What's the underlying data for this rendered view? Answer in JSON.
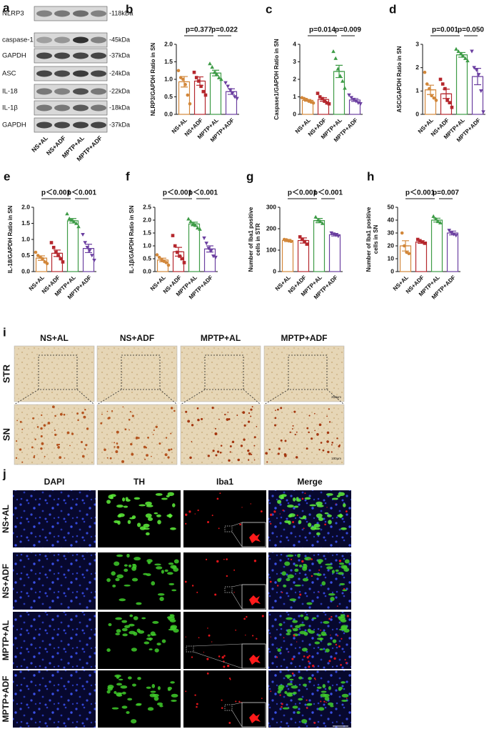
{
  "blot": {
    "label": "a",
    "rows": [
      {
        "name": "NLRP3",
        "size": "-118kDa"
      },
      {
        "name": "caspase-1",
        "size": "-45kDa"
      },
      {
        "name": "GAPDH",
        "size": "-37kDa"
      },
      {
        "name": "ASC",
        "size": "-24kDa"
      },
      {
        "name": "IL-18",
        "size": "-22kDa"
      },
      {
        "name": "IL-1β",
        "size": "-18kDa"
      },
      {
        "name": "GAPDH",
        "size": "-37kDa"
      }
    ],
    "lanes": [
      "NS+AL",
      "NS+ADF",
      "MPTP+AL",
      "MPTP+ADF"
    ]
  },
  "chart_data": [
    {
      "type": "bar",
      "label": "b",
      "ylabel": "NLRP3/GAPDH Ratio in SN",
      "categories": [
        "NS+AL",
        "NS+ADF",
        "MPTP+AL",
        "MPTP+ADF"
      ],
      "values": [
        0.93,
        0.95,
        1.18,
        0.65
      ],
      "errors": [
        0.15,
        0.12,
        0.08,
        0.08
      ],
      "points": [
        [
          1.25,
          1.05,
          1.0,
          0.85,
          0.55,
          0.3
        ],
        [
          1.2,
          1.05,
          0.95,
          0.8,
          0.65,
          0.55
        ],
        [
          1.45,
          1.35,
          1.2,
          1.15,
          1.05,
          1.0
        ],
        [
          0.9,
          0.8,
          0.7,
          0.6,
          0.5,
          0.45
        ]
      ],
      "colors": [
        "#d2873a",
        "#b5272d",
        "#3d9b46",
        "#6b3fa0"
      ],
      "ylim": [
        0,
        2
      ],
      "yticks": [
        {
          "value": 0,
          "label": "0.0"
        },
        0.5,
        {
          "value": 1,
          "label": "1.0"
        },
        1.5,
        {
          "value": 2,
          "label": "2.0"
        }
      ],
      "annotations": [
        "p=0.377",
        "p=0.022"
      ]
    },
    {
      "type": "bar",
      "label": "c",
      "ylabel": "Caspase1/GAPDH Ratio in SN",
      "categories": [
        "NS+AL",
        "NS+ADF",
        "MPTP+AL",
        "MPTP+ADF"
      ],
      "values": [
        0.8,
        0.85,
        2.45,
        0.82
      ],
      "errors": [
        0.05,
        0.1,
        0.35,
        0.08
      ],
      "points": [
        [
          0.95,
          0.9,
          0.85,
          0.75,
          0.7,
          0.65
        ],
        [
          1.2,
          1.0,
          0.9,
          0.75,
          0.65,
          0.6
        ],
        [
          3.6,
          3.2,
          2.6,
          2.2,
          1.9,
          1.5
        ],
        [
          1.1,
          0.95,
          0.85,
          0.75,
          0.65,
          0.6
        ]
      ],
      "colors": [
        "#d2873a",
        "#b5272d",
        "#3d9b46",
        "#6b3fa0"
      ],
      "ylim": [
        0,
        4
      ],
      "yticks": [
        0,
        1,
        2,
        3,
        4
      ],
      "annotations": [
        "p=0.014",
        "p=0.009"
      ]
    },
    {
      "type": "bar",
      "label": "d",
      "ylabel": "ASC/GAPDH Ratio in SN",
      "categories": [
        "NS+AL",
        "NS+ADF",
        "MPTP+AL",
        "MPTP+ADF"
      ],
      "values": [
        1.05,
        0.88,
        2.55,
        1.62
      ],
      "errors": [
        0.2,
        0.2,
        0.1,
        0.35
      ],
      "points": [
        [
          1.8,
          1.3,
          1.1,
          0.8,
          0.7,
          0.6
        ],
        [
          1.5,
          1.3,
          1.1,
          0.6,
          0.5,
          0.3
        ],
        [
          2.8,
          2.7,
          2.6,
          2.5,
          2.4,
          2.3
        ],
        [
          2.7,
          2.0,
          1.9,
          1.7,
          1.0,
          0.1
        ]
      ],
      "colors": [
        "#d2873a",
        "#b5272d",
        "#3d9b46",
        "#6b3fa0"
      ],
      "ylim": [
        0,
        3
      ],
      "yticks": [
        0,
        1,
        2,
        3
      ],
      "annotations": [
        "p=0.001",
        "p=0.050"
      ]
    },
    {
      "type": "bar",
      "label": "e",
      "ylabel": "IL-18/GAPDH Ratio in SN",
      "categories": [
        "NS+AL",
        "NS+ADF",
        "MPTP+AL",
        "MPTP+ADF"
      ],
      "values": [
        0.42,
        0.57,
        1.58,
        0.72
      ],
      "errors": [
        0.07,
        0.1,
        0.07,
        0.13
      ],
      "points": [
        [
          0.6,
          0.5,
          0.45,
          0.4,
          0.3,
          0.25
        ],
        [
          0.9,
          0.75,
          0.6,
          0.5,
          0.4,
          0.3
        ],
        [
          1.8,
          1.65,
          1.6,
          1.55,
          1.5,
          1.4
        ],
        [
          1.15,
          0.9,
          0.75,
          0.65,
          0.5,
          0.35
        ]
      ],
      "colors": [
        "#d2873a",
        "#b5272d",
        "#3d9b46",
        "#6b3fa0"
      ],
      "ylim": [
        0,
        2
      ],
      "yticks": [
        {
          "value": 0,
          "label": "0.0"
        },
        0.5,
        {
          "value": 1,
          "label": "1.0"
        },
        1.5,
        {
          "value": 2,
          "label": "2.0"
        }
      ],
      "annotations": [
        "p＜0.001",
        "p＜0.001"
      ]
    },
    {
      "type": "bar",
      "label": "f",
      "ylabel": "IL-1β/GAPDH Ratio in SN",
      "categories": [
        "NS+AL",
        "NS+ADF",
        "MPTP+AL",
        "MPTP+ADF"
      ],
      "values": [
        0.45,
        0.77,
        1.85,
        0.88
      ],
      "errors": [
        0.07,
        0.17,
        0.07,
        0.12
      ],
      "points": [
        [
          0.65,
          0.55,
          0.45,
          0.4,
          0.35,
          0.25
        ],
        [
          1.4,
          1.0,
          0.75,
          0.6,
          0.5,
          0.35
        ],
        [
          2.05,
          1.95,
          1.85,
          1.8,
          1.7,
          1.65
        ],
        [
          1.3,
          1.1,
          0.9,
          0.8,
          0.6,
          0.55
        ]
      ],
      "colors": [
        "#d2873a",
        "#b5272d",
        "#3d9b46",
        "#6b3fa0"
      ],
      "ylim": [
        0,
        2.5
      ],
      "yticks": [
        {
          "value": 0,
          "label": "0.0"
        },
        0.5,
        {
          "value": 1,
          "label": "1.0"
        },
        1.5,
        {
          "value": 2,
          "label": "2.0"
        },
        2.5
      ],
      "annotations": [
        "p＜0.001",
        "p＜0.001"
      ]
    },
    {
      "type": "bar",
      "label": "g",
      "ylabel": [
        "Number of Iba1 positive",
        "cells in STR"
      ],
      "categories": [
        "NS+AL",
        "NS+ADF",
        "MPTP+AL",
        "MPTP+ADF"
      ],
      "values": [
        145,
        145,
        238,
        172
      ],
      "errors": [
        5,
        12,
        10,
        6
      ],
      "points": [
        [
          150,
          148,
          143,
          141
        ],
        [
          162,
          150,
          140,
          128
        ],
        [
          255,
          240,
          235,
          225
        ],
        [
          180,
          175,
          170,
          165
        ]
      ],
      "colors": [
        "#d2873a",
        "#b5272d",
        "#3d9b46",
        "#6b3fa0"
      ],
      "ylim": [
        0,
        300
      ],
      "yticks": [
        0,
        100,
        200,
        300
      ],
      "annotations": [
        "p＜0.001",
        "p＜0.001"
      ]
    },
    {
      "type": "bar",
      "label": "h",
      "ylabel": [
        "Number of Iba1 positive",
        "cells in SN"
      ],
      "categories": [
        "NS+AL",
        "NS+ADF",
        "MPTP+AL",
        "MPTP+ADF"
      ],
      "values": [
        20,
        23,
        40,
        30
      ],
      "errors": [
        4,
        1,
        1.5,
        1.5
      ],
      "points": [
        [
          30,
          20,
          15,
          14
        ],
        [
          25,
          24,
          23,
          22
        ],
        [
          43,
          41,
          39,
          38
        ],
        [
          32,
          30,
          29,
          28
        ]
      ],
      "colors": [
        "#d2873a",
        "#b5272d",
        "#3d9b46",
        "#6b3fa0"
      ],
      "ylim": [
        0,
        50
      ],
      "yticks": [
        0,
        10,
        20,
        30,
        40,
        50
      ],
      "annotations": [
        "p＜0.001",
        "p=0.007"
      ]
    }
  ],
  "ihc": {
    "label": "i",
    "columns": [
      "NS+AL",
      "NS+ADF",
      "MPTP+AL",
      "MPTP+ADF"
    ],
    "rows": [
      "STR",
      "SN"
    ],
    "scale_bars": [
      "200μm",
      "100μm"
    ]
  },
  "fluorescence": {
    "label": "j",
    "columns": [
      "DAPI",
      "TH",
      "Iba1",
      "Merge"
    ],
    "rows": [
      "NS+AL",
      "NS+ADF",
      "MPTP+AL",
      "MPTP+ADF"
    ],
    "scale_bar": "100μm"
  }
}
